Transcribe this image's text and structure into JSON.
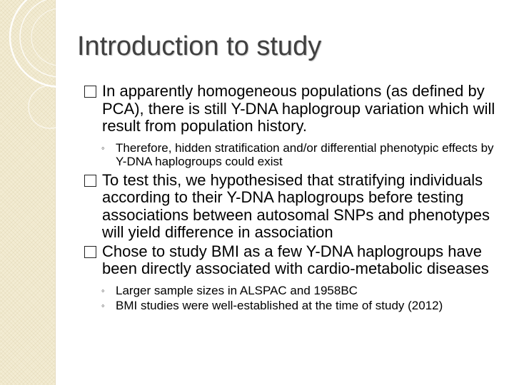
{
  "slide": {
    "title": "Introduction to study",
    "bullets": [
      {
        "text": "In apparently homogeneous populations (as defined by PCA), there is still Y-DNA haplogroup variation which will result from population history.",
        "sub": [
          "Therefore, hidden stratification and/or differential phenotypic effects by Y-DNA haplogroups could exist"
        ]
      },
      {
        "text": "To test this, we hypothesised that stratifying individuals according to their Y-DNA haplogroups before testing associations between autosomal SNPs and phenotypes will yield difference in association",
        "sub": []
      },
      {
        "text": "Chose to study BMI as a few Y-DNA haplogroups have been directly associated with cardio-metabolic diseases",
        "sub": [
          "Larger sample sizes in ALSPAC and 1958BC",
          "BMI studies were well-established at the time of study (2012)"
        ]
      }
    ]
  },
  "theme": {
    "band_color": "#f3ecd3",
    "title_color": "#404040",
    "text_color": "#000000"
  }
}
